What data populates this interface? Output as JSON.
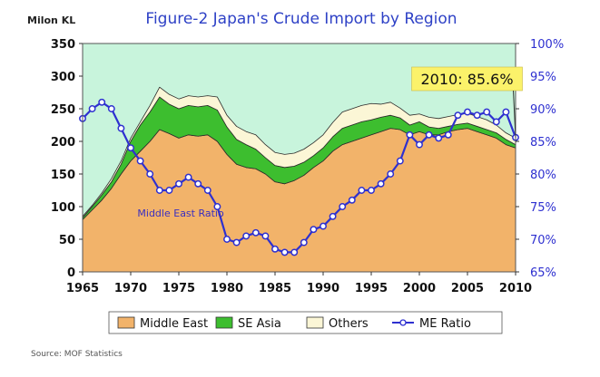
{
  "chart_data": {
    "type": "area",
    "title": "Figure-2 Japan's Crude Import by Region",
    "ylabel_left": "Milon KL",
    "source": "Source: MOF Statistics",
    "x_ticks": [
      "1965",
      "1970",
      "1975",
      "1980",
      "1985",
      "1990",
      "1995",
      "2000",
      "2005",
      "2010"
    ],
    "y_left_ticks": [
      "0",
      "50",
      "100",
      "150",
      "200",
      "250",
      "300",
      "350"
    ],
    "y_right_ticks": [
      "65%",
      "70%",
      "75%",
      "80%",
      "85%",
      "90%",
      "95%",
      "100%"
    ],
    "ylim_left": [
      0,
      350
    ],
    "ylim_right": [
      65,
      100
    ],
    "xlim": [
      1965,
      2010
    ],
    "stacked": true,
    "legend_position": "bottom",
    "x": [
      1965,
      1966,
      1967,
      1968,
      1969,
      1970,
      1971,
      1972,
      1973,
      1974,
      1975,
      1976,
      1977,
      1978,
      1979,
      1980,
      1981,
      1982,
      1983,
      1984,
      1985,
      1986,
      1987,
      1988,
      1989,
      1990,
      1991,
      1992,
      1993,
      1994,
      1995,
      1996,
      1997,
      1998,
      1999,
      2000,
      2001,
      2002,
      2003,
      2004,
      2005,
      2006,
      2007,
      2008,
      2009,
      2010
    ],
    "series": [
      {
        "name": "Middle East",
        "kind": "area",
        "axis": "left",
        "color": "#F2B36A",
        "values": [
          80,
          95,
          110,
          128,
          150,
          170,
          185,
          200,
          218,
          212,
          205,
          210,
          208,
          210,
          200,
          180,
          165,
          160,
          158,
          150,
          138,
          135,
          140,
          148,
          160,
          170,
          185,
          195,
          200,
          205,
          210,
          215,
          220,
          218,
          210,
          215,
          210,
          210,
          215,
          218,
          220,
          215,
          210,
          205,
          195,
          190
        ]
      },
      {
        "name": "SE Asia",
        "kind": "area",
        "axis": "left",
        "color": "#3DBE2F",
        "values": [
          3,
          5,
          8,
          10,
          15,
          30,
          40,
          45,
          50,
          45,
          45,
          45,
          45,
          45,
          48,
          42,
          38,
          35,
          30,
          25,
          25,
          25,
          22,
          20,
          18,
          20,
          22,
          25,
          25,
          25,
          23,
          22,
          20,
          18,
          15,
          15,
          12,
          10,
          8,
          8,
          8,
          8,
          8,
          8,
          8,
          5
        ]
      },
      {
        "name": "Others",
        "kind": "area",
        "axis": "left",
        "color": "#FBF6D6",
        "values": [
          2,
          2,
          3,
          5,
          5,
          5,
          5,
          10,
          15,
          15,
          15,
          15,
          15,
          15,
          20,
          18,
          20,
          20,
          22,
          20,
          20,
          20,
          20,
          20,
          20,
          20,
          22,
          25,
          25,
          25,
          25,
          20,
          20,
          15,
          15,
          12,
          15,
          15,
          15,
          15,
          15,
          15,
          15,
          12,
          10,
          10
        ]
      },
      {
        "name": "ME Ratio",
        "kind": "line",
        "axis": "right",
        "color": "#2E30D0",
        "values": [
          88.5,
          90,
          91,
          90,
          87,
          84,
          82,
          80,
          77.5,
          77.5,
          78.5,
          79.5,
          78.5,
          77.5,
          75,
          70,
          69.5,
          70.5,
          71,
          70.5,
          68.5,
          68,
          68,
          69.5,
          71.5,
          72,
          73.5,
          75,
          76,
          77.5,
          77.5,
          78.5,
          80,
          82,
          86,
          84.5,
          86,
          85.5,
          86,
          89,
          89.5,
          89,
          89.5,
          88,
          89.5,
          85.6
        ]
      }
    ],
    "annotations": [
      {
        "text": "2010: 85.6%"
      },
      {
        "text": "Middle East Ratio"
      }
    ]
  }
}
